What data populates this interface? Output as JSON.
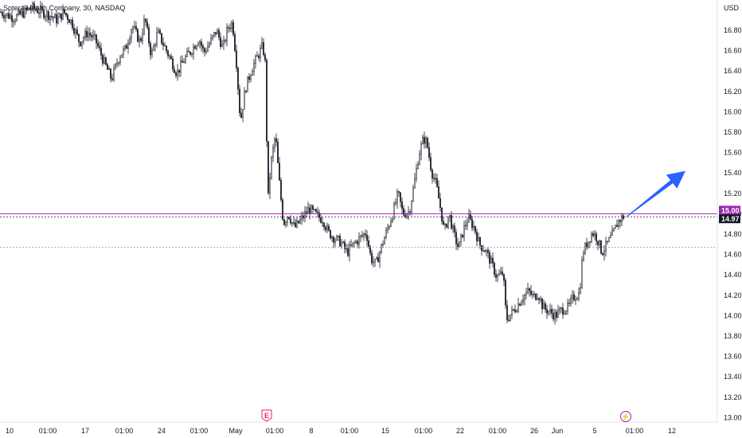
{
  "symbol_label": "Sotera Health Company, 30, NASDAQ",
  "currency": "USD",
  "chart_data": {
    "type": "candlestick",
    "title": "Sotera Health Company, 30, NASDAQ",
    "ylabel": "USD",
    "ylim": [
      12.97,
      17.05
    ],
    "y_ticks": [
      13.0,
      13.2,
      13.4,
      13.6,
      13.8,
      14.0,
      14.2,
      14.4,
      14.6,
      14.8,
      15.0,
      15.2,
      15.4,
      15.6,
      15.8,
      16.0,
      16.2,
      16.4,
      16.6,
      16.8
    ],
    "y_tick_labels": [
      "13.00",
      "13.20",
      "13.40",
      "13.60",
      "13.80",
      "14.00",
      "14.20",
      "14.40",
      "14.60",
      "14.80",
      "15.00",
      "15.20",
      "15.40",
      "15.60",
      "15.80",
      "16.00",
      "16.20",
      "16.40",
      "16.60",
      "16.80"
    ],
    "x_ticks": [
      "10",
      "01:00",
      "17",
      "01:00",
      "24",
      "01:00",
      "May",
      "01:00",
      "8",
      "01:00",
      "15",
      "01:00",
      "22",
      "01:00",
      "26",
      "Jun",
      "5",
      "01:00",
      "12"
    ],
    "price_path": [
      [
        0,
        16.98
      ],
      [
        18,
        16.92
      ],
      [
        40,
        17.02
      ],
      [
        62,
        16.95
      ],
      [
        72,
        16.9
      ],
      [
        80,
        16.98
      ],
      [
        90,
        16.88
      ],
      [
        100,
        16.68
      ],
      [
        110,
        16.78
      ],
      [
        120,
        16.7
      ],
      [
        130,
        16.5
      ],
      [
        140,
        16.32
      ],
      [
        150,
        16.55
      ],
      [
        158,
        16.62
      ],
      [
        166,
        16.85
      ],
      [
        176,
        16.68
      ],
      [
        182,
        16.92
      ],
      [
        190,
        16.55
      ],
      [
        198,
        16.78
      ],
      [
        206,
        16.65
      ],
      [
        214,
        16.52
      ],
      [
        222,
        16.38
      ],
      [
        232,
        16.52
      ],
      [
        240,
        16.6
      ],
      [
        250,
        16.72
      ],
      [
        256,
        16.58
      ],
      [
        264,
        16.68
      ],
      [
        272,
        16.8
      ],
      [
        280,
        16.62
      ],
      [
        286,
        16.82
      ],
      [
        292,
        16.88
      ],
      [
        297,
        16.48
      ],
      [
        302,
        15.9
      ],
      [
        308,
        16.22
      ],
      [
        316,
        16.42
      ],
      [
        324,
        16.55
      ],
      [
        330,
        16.65
      ],
      [
        334,
        16.42
      ],
      [
        336,
        15.05
      ],
      [
        340,
        15.48
      ],
      [
        346,
        15.78
      ],
      [
        350,
        15.38
      ],
      [
        356,
        14.9
      ],
      [
        362,
        15.0
      ],
      [
        370,
        14.86
      ],
      [
        378,
        14.94
      ],
      [
        388,
        15.05
      ],
      [
        398,
        14.98
      ],
      [
        406,
        14.94
      ],
      [
        412,
        14.82
      ],
      [
        420,
        14.76
      ],
      [
        428,
        14.72
      ],
      [
        436,
        14.62
      ],
      [
        444,
        14.7
      ],
      [
        452,
        14.76
      ],
      [
        460,
        14.82
      ],
      [
        466,
        14.56
      ],
      [
        472,
        14.5
      ],
      [
        480,
        14.7
      ],
      [
        488,
        14.88
      ],
      [
        494,
        15.02
      ],
      [
        500,
        15.2
      ],
      [
        506,
        15.0
      ],
      [
        514,
        15.02
      ],
      [
        520,
        15.28
      ],
      [
        526,
        15.58
      ],
      [
        532,
        15.74
      ],
      [
        536,
        15.7
      ],
      [
        542,
        15.42
      ],
      [
        548,
        15.28
      ],
      [
        554,
        15.02
      ],
      [
        558,
        14.82
      ],
      [
        564,
        15.0
      ],
      [
        570,
        14.8
      ],
      [
        576,
        14.66
      ],
      [
        582,
        14.84
      ],
      [
        588,
        14.96
      ],
      [
        596,
        14.86
      ],
      [
        602,
        14.7
      ],
      [
        610,
        14.64
      ],
      [
        618,
        14.5
      ],
      [
        624,
        14.38
      ],
      [
        632,
        14.42
      ],
      [
        636,
        13.96
      ],
      [
        642,
        14.02
      ],
      [
        650,
        14.1
      ],
      [
        656,
        14.18
      ],
      [
        664,
        14.24
      ],
      [
        670,
        14.18
      ],
      [
        676,
        14.22
      ],
      [
        682,
        14.08
      ],
      [
        690,
        14.04
      ],
      [
        698,
        14.0
      ],
      [
        706,
        14.06
      ],
      [
        714,
        14.08
      ],
      [
        720,
        14.18
      ],
      [
        728,
        14.22
      ],
      [
        732,
        14.62
      ],
      [
        738,
        14.72
      ],
      [
        744,
        14.82
      ],
      [
        750,
        14.76
      ],
      [
        756,
        14.62
      ],
      [
        764,
        14.72
      ],
      [
        770,
        14.8
      ],
      [
        776,
        14.92
      ],
      [
        782,
        14.97
      ]
    ],
    "price_lines": [
      {
        "value": 15.0,
        "label": "15.00",
        "color": "#9c27b0",
        "style": "solid"
      },
      {
        "value": 14.97,
        "label": "14.97",
        "color": "#131722",
        "style": "dotted"
      },
      {
        "value": 14.67,
        "label": "",
        "color": "#9598a1",
        "style": "dotted"
      }
    ],
    "forecast_arrow": {
      "from_price": 14.97,
      "to_price": 15.42,
      "color": "#2962ff"
    },
    "event_markers": [
      {
        "type": "earnings",
        "label": "E",
        "color": "#e91e63",
        "near_tick": "May"
      },
      {
        "type": "dividend-flash",
        "label": "⚡",
        "color": "#9c27b0",
        "near_tick": "5"
      }
    ],
    "grid": false
  }
}
